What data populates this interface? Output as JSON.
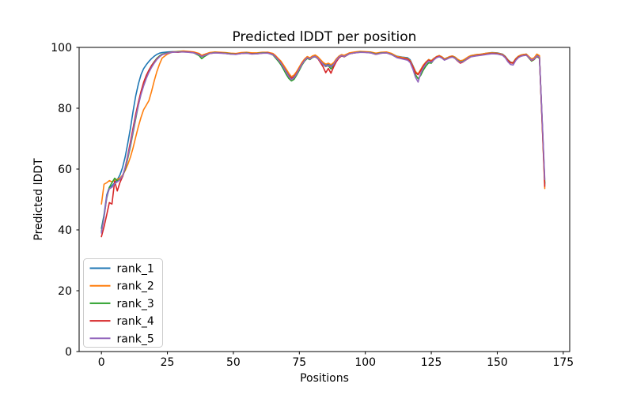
{
  "figure": {
    "title": "Predicted lDDT per position",
    "xlabel": "Positions",
    "ylabel": "Predicted lDDT"
  },
  "chart_data": {
    "type": "line",
    "title": "Predicted lDDT per position",
    "xlabel": "Positions",
    "ylabel": "Predicted lDDT",
    "xlim": [
      -8.45,
      177.45
    ],
    "ylim": [
      0,
      100
    ],
    "xticks": [
      0,
      25,
      50,
      75,
      100,
      125,
      150,
      175
    ],
    "yticks": [
      0,
      20,
      40,
      60,
      80,
      100
    ],
    "grid": false,
    "legend_position": "lower left",
    "x": [
      0,
      1,
      2,
      3,
      4,
      5,
      6,
      7,
      8,
      9,
      10,
      11,
      12,
      13,
      14,
      15,
      16,
      17,
      18,
      19,
      20,
      21,
      22,
      23,
      25,
      27,
      29,
      31,
      33,
      35,
      37,
      38,
      39,
      41,
      43,
      45,
      47,
      49,
      51,
      53,
      55,
      57,
      59,
      61,
      63,
      65,
      66,
      67,
      68,
      69,
      70,
      71,
      72,
      73,
      74,
      75,
      76,
      77,
      78,
      79,
      80,
      81,
      82,
      83,
      84,
      85,
      86,
      87,
      88,
      89,
      90,
      91,
      92,
      93,
      94,
      96,
      98,
      100,
      102,
      104,
      106,
      108,
      110,
      112,
      114,
      116,
      117,
      118,
      119,
      120,
      121,
      122,
      123,
      124,
      125,
      126,
      127,
      128,
      129,
      130,
      131,
      132,
      133,
      134,
      135,
      136,
      137,
      138,
      139,
      140,
      142,
      144,
      146,
      148,
      150,
      152,
      153,
      154,
      155,
      156,
      157,
      158,
      159,
      160,
      161,
      162,
      163,
      164,
      165,
      166,
      167,
      168
    ],
    "series": [
      {
        "name": "rank_1",
        "color": "#1f77b4",
        "values": [
          40.5,
          45,
          51.5,
          54,
          54.5,
          55.5,
          56.5,
          58,
          60.5,
          64,
          68.5,
          73.5,
          79,
          84,
          88,
          91,
          93,
          94.3,
          95.4,
          96.3,
          97.1,
          97.7,
          98.1,
          98.3,
          98.5,
          98.6,
          98.5,
          98.7,
          98.6,
          98.4,
          97.9,
          97.3,
          97.7,
          98.2,
          98.4,
          98.3,
          98.2,
          98,
          97.9,
          98.2,
          98.3,
          98,
          98.1,
          98.3,
          98.4,
          97.9,
          97.1,
          96.2,
          95.2,
          93.8,
          92.4,
          91,
          89.9,
          90.4,
          91.7,
          93.3,
          94.9,
          96.1,
          96.9,
          96.5,
          97.1,
          97.3,
          96.7,
          95.8,
          94.8,
          94.2,
          94.5,
          94,
          94.8,
          96.1,
          97.1,
          97.6,
          97.3,
          97.7,
          98.1,
          98.4,
          98.6,
          98.5,
          98.4,
          97.9,
          98.3,
          98.4,
          97.9,
          97.1,
          96.8,
          96.6,
          95.9,
          94.1,
          92.1,
          91.2,
          92.6,
          94.1,
          95.2,
          96,
          95.6,
          96.4,
          97,
          97.3,
          96.9,
          96.2,
          96.6,
          97,
          97.2,
          96.8,
          96,
          95.5,
          95.7,
          96.2,
          96.8,
          97.3,
          97.6,
          97.8,
          98.1,
          98.3,
          98.2,
          97.8,
          97.1,
          96,
          95.2,
          95,
          96.3,
          97.1,
          97.5,
          97.7,
          97.8,
          96.9,
          96,
          96.4,
          97.4,
          96.9,
          76,
          55
        ]
      },
      {
        "name": "rank_2",
        "color": "#ff7f0e",
        "values": [
          48.5,
          55,
          55.5,
          56.2,
          55.8,
          56.3,
          56.6,
          57,
          58,
          59.5,
          61.5,
          64,
          67,
          70.5,
          74,
          77,
          79.5,
          81,
          82.5,
          85.5,
          89,
          92,
          94.5,
          96.5,
          97.8,
          98.5,
          98.7,
          98.8,
          98.7,
          98.5,
          98,
          97.4,
          97.7,
          98.3,
          98.5,
          98.4,
          98.3,
          98.1,
          98,
          98.3,
          98.4,
          98.2,
          98.2,
          98.4,
          98.4,
          98,
          97.3,
          96.4,
          95.5,
          94.2,
          92.9,
          91.5,
          90.4,
          90.9,
          92.1,
          93.6,
          95.1,
          96.2,
          97,
          96.6,
          97.2,
          97.5,
          96.9,
          96,
          95.1,
          94.5,
          94.8,
          94.3,
          95,
          96.2,
          97.1,
          97.6,
          97.4,
          97.8,
          98.2,
          98.5,
          98.7,
          98.6,
          98.5,
          98.1,
          98.4,
          98.5,
          98,
          97,
          96.7,
          96.3,
          95.6,
          93.9,
          92,
          91.3,
          92.7,
          94.2,
          95.2,
          96,
          95.6,
          96.4,
          97,
          97.3,
          96.9,
          96.2,
          96.6,
          97,
          97.2,
          96.8,
          96.1,
          95.6,
          95.8,
          96.3,
          96.9,
          97.3,
          97.6,
          97.8,
          98.1,
          98.2,
          98.1,
          97.7,
          97,
          95.9,
          95.1,
          95,
          96.3,
          97.1,
          97.5,
          97.7,
          97.8,
          97,
          96.2,
          96.6,
          97.8,
          97.3,
          75.5,
          53.6
        ]
      },
      {
        "name": "rank_3",
        "color": "#2ca02c",
        "values": [
          39.5,
          44.5,
          50.5,
          54,
          55.5,
          57,
          56.2,
          56.5,
          57.5,
          60,
          63.5,
          67.5,
          72,
          76.5,
          81,
          85,
          88,
          90.5,
          92.5,
          94,
          95.3,
          96.4,
          97.2,
          97.8,
          98.2,
          98.5,
          98.6,
          98.6,
          98.5,
          98.2,
          97.3,
          96.3,
          97,
          98,
          98.3,
          98.2,
          98.1,
          97.9,
          97.8,
          98,
          98.2,
          97.9,
          98,
          98.2,
          98.2,
          97.5,
          96.5,
          95.5,
          94.3,
          92.8,
          91.2,
          89.8,
          89,
          89.5,
          90.9,
          92.5,
          94.2,
          95.5,
          96.4,
          96,
          96.7,
          96.9,
          96.3,
          95.3,
          94.3,
          93.7,
          94,
          92.9,
          94.1,
          95.5,
          96.6,
          97.2,
          96.9,
          97.4,
          97.9,
          98.2,
          98.5,
          98.4,
          98.3,
          97.8,
          98.2,
          98.2,
          97.7,
          96.7,
          96.4,
          96,
          95.2,
          93.2,
          91,
          89.7,
          90.8,
          92.6,
          93.9,
          94.9,
          94.8,
          96,
          96.7,
          97,
          96.6,
          95.9,
          96.3,
          96.7,
          96.9,
          96.5,
          95.7,
          95.2,
          95.4,
          95.9,
          96.5,
          97,
          97.3,
          97.5,
          97.8,
          98,
          97.9,
          97.5,
          96.8,
          95.7,
          94.9,
          94.8,
          96,
          96.8,
          97.2,
          97.4,
          97.5,
          96.5,
          95.5,
          96,
          97,
          96.4,
          76.5,
          55.4
        ]
      },
      {
        "name": "rank_4",
        "color": "#d62728",
        "values": [
          37.8,
          41,
          45,
          49,
          48.5,
          56,
          52.8,
          55.5,
          57.5,
          60.5,
          64.5,
          69,
          73.5,
          78,
          82,
          85.5,
          88.5,
          90.8,
          92.5,
          94,
          95.2,
          96.2,
          97,
          97.6,
          98.1,
          98.5,
          98.4,
          98.6,
          98.5,
          98.3,
          97.7,
          97,
          97.4,
          98,
          98.2,
          98.2,
          98,
          97.8,
          97.8,
          98,
          98.1,
          97.9,
          97.9,
          98.1,
          98.2,
          97.7,
          96.9,
          96,
          94.9,
          93.5,
          92,
          90.6,
          89.9,
          90.3,
          91.5,
          93,
          94.6,
          95.8,
          96.6,
          96.2,
          96.8,
          97,
          96.3,
          95,
          93.6,
          91.7,
          93.1,
          91.5,
          93.6,
          95.3,
          96.5,
          97.2,
          96.9,
          97.4,
          97.9,
          98.2,
          98.4,
          98.4,
          98.2,
          97.7,
          98.1,
          98.2,
          97.6,
          96.7,
          96.4,
          96.1,
          95.4,
          93.6,
          91.6,
          91,
          92.4,
          93.9,
          95,
          95.8,
          95.4,
          96.1,
          96.8,
          97.1,
          96.6,
          95.9,
          96.2,
          96.7,
          96.9,
          96.4,
          95.5,
          94.8,
          95.2,
          95.8,
          96.4,
          96.9,
          97.3,
          97.5,
          97.8,
          98,
          97.9,
          97.5,
          96.8,
          95.7,
          94.9,
          94.8,
          96,
          96.8,
          97.2,
          97.4,
          97.5,
          96.6,
          95.7,
          96.1,
          97.1,
          96.6,
          75.8,
          54.3
        ]
      },
      {
        "name": "rank_5",
        "color": "#9467bd",
        "values": [
          39,
          44,
          51,
          53.5,
          54,
          55.2,
          55.8,
          56.5,
          57.8,
          60.5,
          64,
          68,
          72.5,
          77,
          81,
          84.5,
          87.3,
          89.8,
          91.8,
          93.4,
          94.8,
          96,
          96.9,
          97.6,
          98.1,
          98.4,
          98.5,
          98.5,
          98.4,
          98.2,
          97.6,
          97,
          97.3,
          98,
          98.2,
          98.1,
          98,
          97.8,
          97.7,
          98,
          98.1,
          97.8,
          97.9,
          98.1,
          98.1,
          97.6,
          96.8,
          95.9,
          94.8,
          93.4,
          91.9,
          90.4,
          89.4,
          90,
          91.3,
          92.9,
          94.5,
          95.7,
          96.6,
          96.2,
          96.8,
          97,
          96.4,
          95.4,
          94.4,
          93.8,
          94.1,
          93.6,
          94.4,
          95.8,
          96.8,
          97.3,
          97,
          97.4,
          97.9,
          98.2,
          98.4,
          98.3,
          98.2,
          97.7,
          98.1,
          98.2,
          97.6,
          96.6,
          96.2,
          95.8,
          95,
          92.9,
          90.2,
          88.6,
          91.5,
          93.3,
          94.6,
          95.5,
          95.1,
          95.9,
          96.6,
          96.9,
          96.5,
          95.8,
          96.2,
          96.6,
          96.8,
          96.4,
          95.6,
          95.1,
          95.3,
          95.8,
          96.6,
          96.9,
          97.2,
          97.4,
          97.7,
          97.9,
          97.8,
          97.4,
          96.6,
          95.3,
          94.4,
          94.2,
          95.7,
          96.6,
          97.1,
          97.3,
          97.4,
          96.7,
          95.8,
          96.2,
          97.2,
          96.7,
          77,
          56.6
        ]
      }
    ]
  }
}
